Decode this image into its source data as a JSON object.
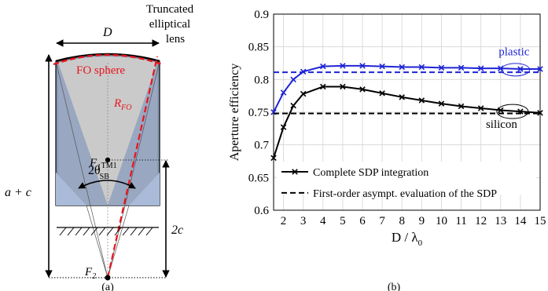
{
  "figure_a": {
    "caption": "(a)",
    "top_label_line1": "Truncated",
    "top_label_line2": "elliptical",
    "top_label_line3": "lens",
    "width_label": "D",
    "fo_sphere_label": "FO sphere",
    "radius_label": "R",
    "radius_sub": "FO",
    "angle_label": "2θ",
    "angle_sub": "SB",
    "angle_sup": "TM1",
    "focus1_label": "F",
    "focus1_sub": "1",
    "focus2_label": "F",
    "focus2_sub": "2",
    "height_label": "a + c",
    "focal_dist_label": "2c",
    "colors": {
      "red": "#e8141c",
      "lens_gray": "#c6c6c6",
      "blue_gray": "#8a9bb5"
    }
  },
  "figure_b": {
    "caption": "(b)",
    "legend": {
      "complete": "Complete SDP integration",
      "asymptotic": "First-order asympt. evaluation of the SDP"
    },
    "label_plastic": "plastic",
    "label_silicon": "silicon",
    "colors": {
      "blue": "#1f24d6",
      "black": "#000000"
    }
  },
  "chart_data": {
    "type": "line",
    "xlabel": "D / λ",
    "xlabel_sub": "0",
    "ylabel": "Aperture efficiency",
    "xlim": [
      1.5,
      15
    ],
    "ylim": [
      0.6,
      0.9
    ],
    "xticks": [
      2,
      3,
      4,
      5,
      6,
      7,
      8,
      9,
      10,
      11,
      12,
      13,
      14,
      15
    ],
    "yticks": [
      "0.6",
      "0.65",
      "0.7",
      "0.75",
      "0.8",
      "0.85",
      "0.9"
    ],
    "grid": true,
    "legend_position": "bottom-right",
    "series": [
      {
        "material": "plastic",
        "method": "complete",
        "color": "#1f24d6",
        "x": [
          1.5,
          2,
          2.5,
          3,
          4,
          5,
          6,
          7,
          8,
          9,
          10,
          11,
          12,
          13,
          14,
          15
        ],
        "y": [
          0.75,
          0.78,
          0.8,
          0.812,
          0.82,
          0.821,
          0.821,
          0.82,
          0.819,
          0.819,
          0.818,
          0.818,
          0.817,
          0.817,
          0.816,
          0.816
        ]
      },
      {
        "material": "plastic",
        "method": "asymptotic",
        "color": "#1f24d6",
        "x": [
          1.5,
          15
        ],
        "y": [
          0.811,
          0.811
        ]
      },
      {
        "material": "silicon",
        "method": "complete",
        "color": "#000000",
        "x": [
          1.5,
          2,
          2.5,
          3,
          4,
          5,
          6,
          7,
          8,
          9,
          10,
          11,
          12,
          13,
          14,
          15
        ],
        "y": [
          0.68,
          0.727,
          0.76,
          0.778,
          0.789,
          0.789,
          0.785,
          0.779,
          0.773,
          0.768,
          0.763,
          0.759,
          0.756,
          0.753,
          0.751,
          0.749
        ]
      },
      {
        "material": "silicon",
        "method": "asymptotic",
        "color": "#000000",
        "x": [
          1.5,
          15
        ],
        "y": [
          0.748,
          0.748
        ]
      }
    ]
  }
}
